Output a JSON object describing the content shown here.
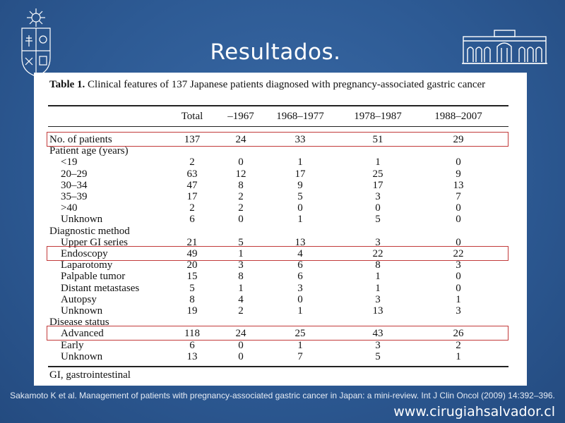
{
  "slide": {
    "title": "Resultados.",
    "website": "www.cirugiahsalvador.cl",
    "citation": "Sakamoto K et al. Management of patients with pregnancy-associated gastric cancer in Japan: a mini-review. Int J Clin Oncol (2009) 14:392–396."
  },
  "table": {
    "caption_label": "Table 1.",
    "caption_text": "Clinical features of 137 Japanese patients diagnosed with pregnancy-associated gastric cancer",
    "columns": [
      "Total",
      "–1967",
      "1968–1977",
      "1978–1987",
      "1988–2007"
    ],
    "rows": [
      {
        "label": "No. of patients",
        "values": [
          "137",
          "24",
          "33",
          "51",
          "29"
        ],
        "indent": false,
        "highlight": true
      },
      {
        "label": "Patient age (years)",
        "values": [],
        "indent": false,
        "highlight": false
      },
      {
        "label": "<19",
        "values": [
          "2",
          "0",
          "1",
          "1",
          "0"
        ],
        "indent": true,
        "highlight": false
      },
      {
        "label": "20–29",
        "values": [
          "63",
          "12",
          "17",
          "25",
          "9"
        ],
        "indent": true,
        "highlight": false
      },
      {
        "label": "30–34",
        "values": [
          "47",
          "8",
          "9",
          "17",
          "13"
        ],
        "indent": true,
        "highlight": false
      },
      {
        "label": "35–39",
        "values": [
          "17",
          "2",
          "5",
          "3",
          "7"
        ],
        "indent": true,
        "highlight": false
      },
      {
        "label": ">40",
        "values": [
          "2",
          "2",
          "0",
          "0",
          "0"
        ],
        "indent": true,
        "highlight": false
      },
      {
        "label": "Unknown",
        "values": [
          "6",
          "0",
          "1",
          "5",
          "0"
        ],
        "indent": true,
        "highlight": false
      },
      {
        "label": "Diagnostic method",
        "values": [],
        "indent": false,
        "highlight": false
      },
      {
        "label": "Upper GI series",
        "values": [
          "21",
          "5",
          "13",
          "3",
          "0"
        ],
        "indent": true,
        "highlight": false
      },
      {
        "label": "Endoscopy",
        "values": [
          "49",
          "1",
          "4",
          "22",
          "22"
        ],
        "indent": true,
        "highlight": true
      },
      {
        "label": "Laparotomy",
        "values": [
          "20",
          "3",
          "6",
          "8",
          "3"
        ],
        "indent": true,
        "highlight": false
      },
      {
        "label": "Palpable tumor",
        "values": [
          "15",
          "8",
          "6",
          "1",
          "0"
        ],
        "indent": true,
        "highlight": false
      },
      {
        "label": "Distant metastases",
        "values": [
          "5",
          "1",
          "3",
          "1",
          "0"
        ],
        "indent": true,
        "highlight": false
      },
      {
        "label": "Autopsy",
        "values": [
          "8",
          "4",
          "0",
          "3",
          "1"
        ],
        "indent": true,
        "highlight": false
      },
      {
        "label": "Unknown",
        "values": [
          "19",
          "2",
          "1",
          "13",
          "3"
        ],
        "indent": true,
        "highlight": false
      },
      {
        "label": "Disease status",
        "values": [],
        "indent": false,
        "highlight": false
      },
      {
        "label": "Advanced",
        "values": [
          "118",
          "24",
          "25",
          "43",
          "26"
        ],
        "indent": true,
        "highlight": true
      },
      {
        "label": "Early",
        "values": [
          "6",
          "0",
          "1",
          "3",
          "2"
        ],
        "indent": true,
        "highlight": false
      },
      {
        "label": "Unknown",
        "values": [
          "13",
          "0",
          "7",
          "5",
          "1"
        ],
        "indent": true,
        "highlight": false
      }
    ],
    "footnote": "GI, gastrointestinal"
  },
  "colors": {
    "background": "#2d5a94",
    "highlight_box": "#c23a3a"
  },
  "icons": {
    "left_logo": "university-crest-icon",
    "right_logo": "hospital-building-icon"
  }
}
